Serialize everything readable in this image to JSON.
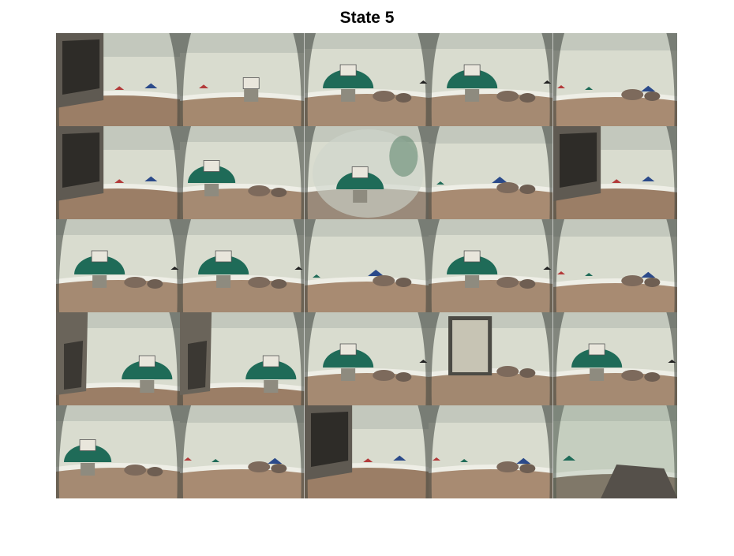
{
  "figure": {
    "title": "State 5"
  },
  "montage": {
    "rows": 5,
    "columns": 5,
    "frames": [
      {
        "scene": "shelf-corner"
      },
      {
        "scene": "wall-markers-near"
      },
      {
        "scene": "green-dome"
      },
      {
        "scene": "green-dome"
      },
      {
        "scene": "wall-markers-far"
      },
      {
        "scene": "shelf-corner"
      },
      {
        "scene": "green-dome-left"
      },
      {
        "scene": "green-dome-blurred"
      },
      {
        "scene": "blue-triangle"
      },
      {
        "scene": "shelf-corner"
      },
      {
        "scene": "green-dome"
      },
      {
        "scene": "green-dome"
      },
      {
        "scene": "blue-triangle"
      },
      {
        "scene": "green-dome"
      },
      {
        "scene": "wall-markers-far"
      },
      {
        "scene": "shelf-closeup"
      },
      {
        "scene": "shelf-closeup"
      },
      {
        "scene": "green-dome"
      },
      {
        "scene": "doorway"
      },
      {
        "scene": "green-dome"
      },
      {
        "scene": "green-dome-left"
      },
      {
        "scene": "wall-markers-far"
      },
      {
        "scene": "shelf-corner"
      },
      {
        "scene": "wall-markers-far"
      },
      {
        "scene": "wall-closeup-dark"
      }
    ]
  }
}
